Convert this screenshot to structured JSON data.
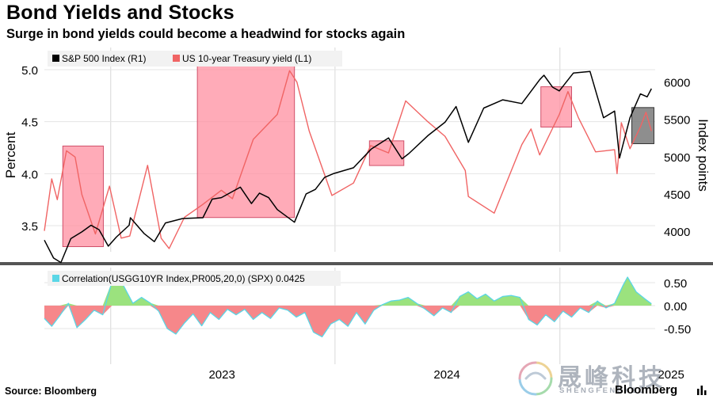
{
  "title": "Bond Yields and Stocks",
  "subtitle": "Surge in bond yields could become a headwind for stocks again",
  "source": "Source: Bloomberg",
  "brand": "Bloomberg",
  "watermark": {
    "zh": "晟峰科技",
    "en": "SHENGFENGKEJI"
  },
  "colors": {
    "spx": "#000000",
    "yield": "#f06464",
    "box": "#ff8fa0",
    "box_last": "#7a7a7a",
    "corr_pos": "#9be27e",
    "corr_neg": "#f6878a",
    "corr_line": "#5ad6e6"
  },
  "icons": {
    "brand_icon": "bloomberg-terminal-icon"
  },
  "chart_data": [
    {
      "type": "line",
      "panel": "top",
      "legend": [
        "S&P 500 Index (R1)",
        "US 10-year Treasury yield (L1)"
      ],
      "ylabel_left": "Percent",
      "ylabel_right": "Index points",
      "left_ticks": [
        "3.5",
        "4.0",
        "4.5",
        "5.0"
      ],
      "right_ticks": [
        "4000",
        "4500",
        "5000",
        "5500",
        "6000"
      ],
      "ylim_left": [
        3.25,
        5.2
      ],
      "ylim_right": [
        3750,
        6400
      ],
      "x_ticks": [
        "2023",
        "2024",
        "2025"
      ],
      "series": [
        {
          "name": "S&P 500 Index (R1)",
          "axis": "right",
          "points": [
            [
              "2022-09-15",
              3880
            ],
            [
              "2022-09-30",
              3640
            ],
            [
              "2022-10-12",
              3580
            ],
            [
              "2022-10-28",
              3900
            ],
            [
              "2022-11-15",
              3990
            ],
            [
              "2022-11-30",
              4080
            ],
            [
              "2022-12-13",
              4020
            ],
            [
              "2022-12-28",
              3800
            ],
            [
              "2023-01-10",
              3920
            ],
            [
              "2023-01-31",
              4080
            ],
            [
              "2023-02-02",
              4180
            ],
            [
              "2023-02-24",
              3970
            ],
            [
              "2023-03-13",
              3860
            ],
            [
              "2023-03-31",
              4110
            ],
            [
              "2023-04-28",
              4170
            ],
            [
              "2023-05-31",
              4180
            ],
            [
              "2023-06-15",
              4430
            ],
            [
              "2023-06-30",
              4450
            ],
            [
              "2023-07-31",
              4590
            ],
            [
              "2023-08-18",
              4370
            ],
            [
              "2023-08-31",
              4510
            ],
            [
              "2023-09-15",
              4450
            ],
            [
              "2023-09-29",
              4290
            ],
            [
              "2023-10-27",
              4120
            ],
            [
              "2023-11-15",
              4500
            ],
            [
              "2023-11-30",
              4560
            ],
            [
              "2023-12-15",
              4720
            ],
            [
              "2023-12-29",
              4770
            ],
            [
              "2024-01-31",
              4850
            ],
            [
              "2024-02-29",
              5100
            ],
            [
              "2024-03-28",
              5250
            ],
            [
              "2024-04-19",
              4970
            ],
            [
              "2024-04-30",
              5040
            ],
            [
              "2024-05-31",
              5280
            ],
            [
              "2024-06-28",
              5460
            ],
            [
              "2024-07-16",
              5670
            ],
            [
              "2024-08-05",
              5190
            ],
            [
              "2024-08-30",
              5650
            ],
            [
              "2024-09-30",
              5760
            ],
            [
              "2024-10-31",
              5710
            ],
            [
              "2024-11-29",
              6030
            ],
            [
              "2024-12-06",
              6090
            ],
            [
              "2024-12-20",
              5930
            ],
            [
              "2024-12-31",
              5880
            ],
            [
              "2025-01-23",
              6120
            ],
            [
              "2025-02-19",
              6140
            ],
            [
              "2025-03-13",
              5520
            ],
            [
              "2025-03-31",
              5610
            ],
            [
              "2025-04-08",
              4980
            ],
            [
              "2025-04-25",
              5520
            ],
            [
              "2025-05-12",
              5840
            ],
            [
              "2025-05-23",
              5800
            ],
            [
              "2025-05-30",
              5910
            ]
          ]
        },
        {
          "name": "US 10-year Treasury yield (L1)",
          "axis": "left",
          "points": [
            [
              "2022-09-15",
              3.45
            ],
            [
              "2022-09-27",
              3.95
            ],
            [
              "2022-10-06",
              3.75
            ],
            [
              "2022-10-21",
              4.22
            ],
            [
              "2022-11-04",
              4.16
            ],
            [
              "2022-11-15",
              3.8
            ],
            [
              "2022-12-07",
              3.42
            ],
            [
              "2022-12-30",
              3.88
            ],
            [
              "2023-01-18",
              3.38
            ],
            [
              "2023-02-01",
              3.4
            ],
            [
              "2023-03-02",
              4.08
            ],
            [
              "2023-03-24",
              3.38
            ],
            [
              "2023-04-06",
              3.28
            ],
            [
              "2023-05-01",
              3.58
            ],
            [
              "2023-05-30",
              3.7
            ],
            [
              "2023-06-30",
              3.84
            ],
            [
              "2023-07-18",
              3.76
            ],
            [
              "2023-08-21",
              4.33
            ],
            [
              "2023-09-29",
              4.57
            ],
            [
              "2023-10-19",
              4.99
            ],
            [
              "2023-10-31",
              4.88
            ],
            [
              "2023-11-20",
              4.41
            ],
            [
              "2023-12-27",
              3.79
            ],
            [
              "2024-01-31",
              3.91
            ],
            [
              "2024-02-28",
              4.27
            ],
            [
              "2024-03-28",
              4.2
            ],
            [
              "2024-04-25",
              4.7
            ],
            [
              "2024-05-31",
              4.5
            ],
            [
              "2024-06-28",
              4.36
            ],
            [
              "2024-07-31",
              4.03
            ],
            [
              "2024-08-05",
              3.78
            ],
            [
              "2024-09-16",
              3.62
            ],
            [
              "2024-10-31",
              4.28
            ],
            [
              "2024-11-15",
              4.43
            ],
            [
              "2024-11-29",
              4.18
            ],
            [
              "2024-12-31",
              4.57
            ],
            [
              "2025-01-14",
              4.79
            ],
            [
              "2025-01-31",
              4.54
            ],
            [
              "2025-02-28",
              4.21
            ],
            [
              "2025-03-31",
              4.23
            ],
            [
              "2025-04-04",
              4.0
            ],
            [
              "2025-04-11",
              4.49
            ],
            [
              "2025-04-25",
              4.24
            ],
            [
              "2025-05-12",
              4.45
            ],
            [
              "2025-05-21",
              4.59
            ],
            [
              "2025-05-30",
              4.41
            ]
          ]
        }
      ],
      "highlight_periods": [
        [
          "2022-10-15",
          "2022-12-20"
        ],
        [
          "2023-05-22",
          "2023-10-27"
        ],
        [
          "2024-02-26",
          "2024-04-22"
        ],
        [
          "2024-12-01",
          "2025-01-20"
        ],
        [
          "2025-04-28",
          "2025-06-03"
        ]
      ]
    },
    {
      "type": "area",
      "panel": "bottom",
      "legend": [
        "Correlation(USGG10YR Index,PR005,20,0) (SPX) 0.0425"
      ],
      "last_value": 0.0425,
      "ticks": [
        "0.50",
        "0.00",
        "-0.50"
      ],
      "ylim": [
        -0.9,
        0.8
      ],
      "series": [
        {
          "name": "Correlation(USGG10YR Index,PR005,20,0) (SPX) 0.0425",
          "points": [
            [
              "2022-09-15",
              -0.28
            ],
            [
              "2022-09-27",
              -0.45
            ],
            [
              "2022-10-10",
              -0.22
            ],
            [
              "2022-10-24",
              0.05
            ],
            [
              "2022-11-07",
              -0.48
            ],
            [
              "2022-11-21",
              -0.3
            ],
            [
              "2022-12-05",
              -0.1
            ],
            [
              "2022-12-19",
              -0.2
            ],
            [
              "2023-01-03",
              0.52
            ],
            [
              "2023-01-20",
              0.48
            ],
            [
              "2023-02-06",
              0.05
            ],
            [
              "2023-02-20",
              0.18
            ],
            [
              "2023-03-06",
              0.06
            ],
            [
              "2023-03-20",
              -0.12
            ],
            [
              "2023-04-03",
              -0.5
            ],
            [
              "2023-04-17",
              -0.62
            ],
            [
              "2023-05-01",
              -0.38
            ],
            [
              "2023-05-15",
              -0.18
            ],
            [
              "2023-05-29",
              -0.44
            ],
            [
              "2023-06-12",
              -0.15
            ],
            [
              "2023-06-26",
              -0.3
            ],
            [
              "2023-07-10",
              -0.08
            ],
            [
              "2023-07-24",
              -0.2
            ],
            [
              "2023-08-07",
              -0.08
            ],
            [
              "2023-08-21",
              -0.3
            ],
            [
              "2023-09-04",
              -0.15
            ],
            [
              "2023-09-18",
              -0.28
            ],
            [
              "2023-10-02",
              -0.05
            ],
            [
              "2023-10-16",
              -0.1
            ],
            [
              "2023-10-30",
              -0.25
            ],
            [
              "2023-11-13",
              -0.15
            ],
            [
              "2023-11-27",
              -0.58
            ],
            [
              "2023-12-11",
              -0.68
            ],
            [
              "2023-12-25",
              -0.4
            ],
            [
              "2024-01-08",
              -0.3
            ],
            [
              "2024-01-22",
              -0.45
            ],
            [
              "2024-02-05",
              -0.15
            ],
            [
              "2024-02-19",
              -0.4
            ],
            [
              "2024-03-04",
              -0.1
            ],
            [
              "2024-03-18",
              0.02
            ],
            [
              "2024-04-01",
              0.1
            ],
            [
              "2024-04-15",
              0.12
            ],
            [
              "2024-04-29",
              0.18
            ],
            [
              "2024-05-13",
              0.05
            ],
            [
              "2024-05-27",
              -0.08
            ],
            [
              "2024-06-10",
              -0.22
            ],
            [
              "2024-06-24",
              -0.05
            ],
            [
              "2024-07-08",
              -0.15
            ],
            [
              "2024-07-22",
              0.2
            ],
            [
              "2024-08-05",
              0.3
            ],
            [
              "2024-08-19",
              0.15
            ],
            [
              "2024-09-02",
              0.25
            ],
            [
              "2024-09-16",
              0.1
            ],
            [
              "2024-09-30",
              0.2
            ],
            [
              "2024-10-14",
              0.22
            ],
            [
              "2024-10-28",
              0.18
            ],
            [
              "2024-11-11",
              -0.3
            ],
            [
              "2024-11-25",
              -0.42
            ],
            [
              "2024-12-09",
              -0.2
            ],
            [
              "2024-12-23",
              -0.35
            ],
            [
              "2025-01-06",
              -0.12
            ],
            [
              "2025-01-20",
              -0.25
            ],
            [
              "2025-02-03",
              -0.05
            ],
            [
              "2025-02-17",
              -0.15
            ],
            [
              "2025-03-03",
              0.1
            ],
            [
              "2025-03-17",
              -0.05
            ],
            [
              "2025-03-31",
              0.05
            ],
            [
              "2025-04-14",
              0.45
            ],
            [
              "2025-04-21",
              0.62
            ],
            [
              "2025-05-05",
              0.3
            ],
            [
              "2025-05-19",
              0.15
            ],
            [
              "2025-05-30",
              0.04
            ]
          ]
        }
      ]
    }
  ]
}
